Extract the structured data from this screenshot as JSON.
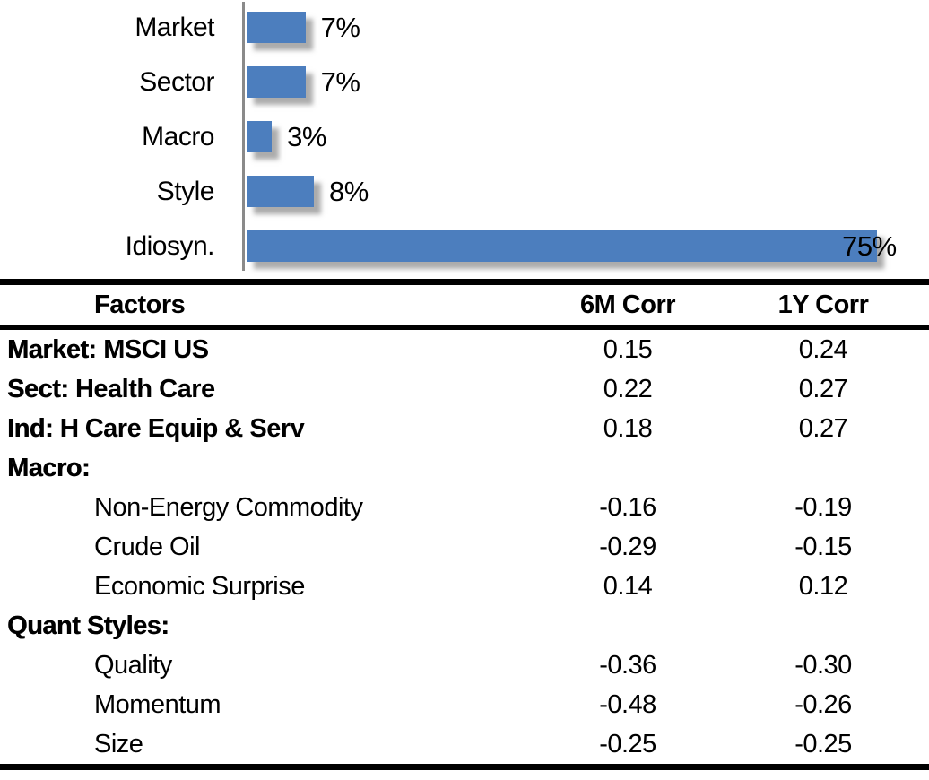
{
  "chart_data": {
    "type": "bar",
    "orientation": "horizontal",
    "title": "",
    "xlabel": "",
    "ylabel": "",
    "categories": [
      "Market",
      "Sector",
      "Macro",
      "Style",
      "Idiosyn."
    ],
    "values": [
      7,
      7,
      3,
      8,
      75
    ],
    "value_labels": [
      "7%",
      "7%",
      "3%",
      "8%",
      "75%"
    ],
    "xlim": [
      0,
      80
    ],
    "grid": false,
    "legend": false,
    "bar_color": "#4C7EBE",
    "axis_color": "#8A8A8A"
  },
  "table": {
    "header": {
      "factors": "Factors",
      "corr_6m": "6M Corr",
      "corr_1y": "1Y Corr"
    },
    "rows": [
      {
        "prefix": "Market",
        "label": ": MSCI US",
        "level": "top",
        "corr_6m": "0.15",
        "corr_1y": "0.24"
      },
      {
        "prefix": "Sect:",
        "label": " Health Care",
        "level": "top",
        "corr_6m": "0.22",
        "corr_1y": "0.27"
      },
      {
        "prefix": "Ind: H",
        "label": " Care Equip & Serv",
        "level": "top",
        "corr_6m": "0.18",
        "corr_1y": "0.27"
      },
      {
        "prefix": "Macro:",
        "label": "",
        "level": "top",
        "corr_6m": "",
        "corr_1y": ""
      },
      {
        "prefix": "",
        "label": "Non-Energy Commodity",
        "level": "sub",
        "corr_6m": "-0.16",
        "corr_1y": "-0.19"
      },
      {
        "prefix": "",
        "label": "Crude Oil",
        "level": "sub",
        "corr_6m": "-0.29",
        "corr_1y": "-0.15"
      },
      {
        "prefix": "",
        "label": "Economic Surprise",
        "level": "sub",
        "corr_6m": "0.14",
        "corr_1y": "0.12"
      },
      {
        "prefix": "Quant Styles:",
        "label": "",
        "level": "top",
        "corr_6m": "",
        "corr_1y": ""
      },
      {
        "prefix": "",
        "label": "Quality",
        "level": "sub",
        "corr_6m": "-0.36",
        "corr_1y": "-0.30"
      },
      {
        "prefix": "",
        "label": "Momentum",
        "level": "sub",
        "corr_6m": "-0.48",
        "corr_1y": "-0.26"
      },
      {
        "prefix": "",
        "label": "Size",
        "level": "sub",
        "corr_6m": "-0.25",
        "corr_1y": "-0.25"
      }
    ]
  }
}
